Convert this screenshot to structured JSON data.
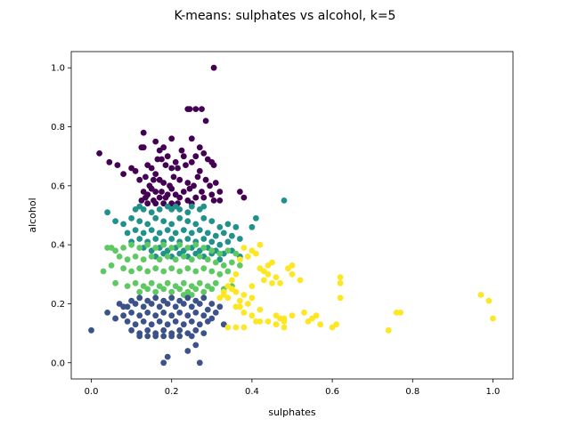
{
  "chart_data": {
    "type": "scatter",
    "title": "K-means: sulphates vs alcohol, k=5",
    "xlabel": "sulphates",
    "ylabel": "alcohol",
    "xlim": [
      -0.05,
      1.05
    ],
    "ylim": [
      -0.055,
      1.055
    ],
    "xticks": [
      0.0,
      0.2,
      0.4,
      0.6,
      0.8,
      1.0
    ],
    "yticks": [
      0.0,
      0.2,
      0.4,
      0.6,
      0.8,
      1.0
    ],
    "xtick_labels": [
      "0.0",
      "0.2",
      "0.4",
      "0.6",
      "0.8",
      "1.0"
    ],
    "ytick_labels": [
      "0.0",
      "0.2",
      "0.4",
      "0.6",
      "0.8",
      "1.0"
    ],
    "grid": false,
    "series": [
      {
        "color": "#440154",
        "x": [
          0.305,
          0.24,
          0.245,
          0.26,
          0.275,
          0.285,
          0.13,
          0.2,
          0.25,
          0.02,
          0.045,
          0.065,
          0.125,
          0.13,
          0.16,
          0.17,
          0.18,
          0.19,
          0.225,
          0.23,
          0.26,
          0.27,
          0.28,
          0.29,
          0.3,
          0.08,
          0.1,
          0.11,
          0.14,
          0.15,
          0.165,
          0.175,
          0.185,
          0.2,
          0.21,
          0.215,
          0.235,
          0.25,
          0.27,
          0.305,
          0.12,
          0.135,
          0.145,
          0.155,
          0.16,
          0.17,
          0.18,
          0.195,
          0.205,
          0.22,
          0.24,
          0.255,
          0.265,
          0.285,
          0.295,
          0.31,
          0.13,
          0.14,
          0.15,
          0.16,
          0.175,
          0.19,
          0.2,
          0.21,
          0.23,
          0.245,
          0.26,
          0.275,
          0.3,
          0.32,
          0.125,
          0.135,
          0.155,
          0.17,
          0.185,
          0.22,
          0.24,
          0.26,
          0.28,
          0.305,
          0.32,
          0.37,
          0.38,
          0.14,
          0.16,
          0.18,
          0.2,
          0.215,
          0.25
        ],
        "y": [
          1.0,
          0.86,
          0.86,
          0.86,
          0.86,
          0.82,
          0.78,
          0.76,
          0.76,
          0.71,
          0.68,
          0.67,
          0.73,
          0.73,
          0.75,
          0.72,
          0.73,
          0.7,
          0.72,
          0.7,
          0.7,
          0.73,
          0.71,
          0.69,
          0.68,
          0.64,
          0.66,
          0.65,
          0.67,
          0.66,
          0.69,
          0.69,
          0.67,
          0.66,
          0.68,
          0.66,
          0.67,
          0.68,
          0.65,
          0.67,
          0.62,
          0.63,
          0.6,
          0.62,
          0.64,
          0.62,
          0.61,
          0.6,
          0.63,
          0.62,
          0.61,
          0.6,
          0.63,
          0.62,
          0.6,
          0.61,
          0.58,
          0.57,
          0.59,
          0.58,
          0.58,
          0.57,
          0.59,
          0.57,
          0.58,
          0.59,
          0.56,
          0.58,
          0.57,
          0.58,
          0.55,
          0.56,
          0.55,
          0.56,
          0.56,
          0.56,
          0.55,
          0.56,
          0.56,
          0.55,
          0.55,
          0.58,
          0.56,
          0.54,
          0.54,
          0.54,
          0.54,
          0.54,
          0.54
        ]
      },
      {
        "color": "#21918c",
        "x": [
          0.48,
          0.41,
          0.4,
          0.04,
          0.11,
          0.12,
          0.13,
          0.15,
          0.17,
          0.19,
          0.2,
          0.21,
          0.22,
          0.24,
          0.25,
          0.27,
          0.28,
          0.06,
          0.08,
          0.1,
          0.12,
          0.14,
          0.16,
          0.18,
          0.2,
          0.22,
          0.24,
          0.26,
          0.28,
          0.3,
          0.32,
          0.34,
          0.36,
          0.09,
          0.11,
          0.13,
          0.15,
          0.17,
          0.19,
          0.21,
          0.23,
          0.25,
          0.27,
          0.29,
          0.31,
          0.33,
          0.35,
          0.37,
          0.1,
          0.12,
          0.14,
          0.16,
          0.18,
          0.2,
          0.22,
          0.24,
          0.26,
          0.28,
          0.3,
          0.32,
          0.34,
          0.13,
          0.15,
          0.17,
          0.19,
          0.21,
          0.23,
          0.25,
          0.27,
          0.29,
          0.31,
          0.33,
          0.35,
          0.37,
          0.16,
          0.18,
          0.2,
          0.22,
          0.24,
          0.26,
          0.28,
          0.3,
          0.32
        ],
        "y": [
          0.55,
          0.49,
          0.46,
          0.51,
          0.52,
          0.53,
          0.52,
          0.51,
          0.52,
          0.53,
          0.52,
          0.53,
          0.52,
          0.51,
          0.53,
          0.52,
          0.53,
          0.48,
          0.47,
          0.49,
          0.48,
          0.47,
          0.49,
          0.48,
          0.47,
          0.49,
          0.48,
          0.47,
          0.49,
          0.48,
          0.46,
          0.47,
          0.46,
          0.44,
          0.45,
          0.44,
          0.45,
          0.44,
          0.45,
          0.44,
          0.45,
          0.44,
          0.45,
          0.44,
          0.43,
          0.44,
          0.43,
          0.42,
          0.41,
          0.42,
          0.41,
          0.42,
          0.41,
          0.42,
          0.41,
          0.42,
          0.41,
          0.42,
          0.41,
          0.4,
          0.41,
          0.39,
          0.38,
          0.39,
          0.38,
          0.39,
          0.38,
          0.39,
          0.38,
          0.39,
          0.38,
          0.37,
          0.38,
          0.36,
          0.36,
          0.37,
          0.36,
          0.37,
          0.36,
          0.37,
          0.36,
          0.37,
          0.35
        ]
      },
      {
        "color": "#5ec962",
        "x": [
          0.03,
          0.04,
          0.05,
          0.06,
          0.08,
          0.1,
          0.12,
          0.14,
          0.16,
          0.18,
          0.2,
          0.22,
          0.24,
          0.26,
          0.28,
          0.3,
          0.32,
          0.34,
          0.36,
          0.07,
          0.09,
          0.11,
          0.13,
          0.15,
          0.17,
          0.19,
          0.21,
          0.23,
          0.25,
          0.27,
          0.29,
          0.31,
          0.33,
          0.35,
          0.37,
          0.05,
          0.08,
          0.1,
          0.12,
          0.14,
          0.16,
          0.18,
          0.2,
          0.22,
          0.24,
          0.26,
          0.28,
          0.3,
          0.32,
          0.34,
          0.06,
          0.09,
          0.11,
          0.13,
          0.15,
          0.17,
          0.19,
          0.21,
          0.23,
          0.25,
          0.27,
          0.29,
          0.31,
          0.33,
          0.35,
          0.12,
          0.14,
          0.16,
          0.18,
          0.2,
          0.22,
          0.24,
          0.26,
          0.28,
          0.3,
          0.25,
          0.23
        ],
        "y": [
          0.31,
          0.39,
          0.39,
          0.38,
          0.39,
          0.4,
          0.39,
          0.4,
          0.39,
          0.4,
          0.39,
          0.4,
          0.39,
          0.4,
          0.39,
          0.38,
          0.37,
          0.38,
          0.37,
          0.36,
          0.35,
          0.36,
          0.35,
          0.36,
          0.35,
          0.36,
          0.35,
          0.36,
          0.35,
          0.36,
          0.35,
          0.34,
          0.33,
          0.34,
          0.33,
          0.33,
          0.32,
          0.31,
          0.32,
          0.31,
          0.32,
          0.31,
          0.32,
          0.31,
          0.32,
          0.31,
          0.32,
          0.31,
          0.3,
          0.31,
          0.27,
          0.26,
          0.27,
          0.26,
          0.27,
          0.26,
          0.27,
          0.26,
          0.27,
          0.26,
          0.27,
          0.26,
          0.27,
          0.25,
          0.26,
          0.24,
          0.25,
          0.24,
          0.25,
          0.24,
          0.25,
          0.24,
          0.25,
          0.24,
          0.25,
          0.23,
          0.23
        ]
      },
      {
        "color": "#3b528b",
        "x": [
          0.0,
          0.04,
          0.06,
          0.08,
          0.1,
          0.12,
          0.14,
          0.16,
          0.18,
          0.2,
          0.22,
          0.24,
          0.26,
          0.28,
          0.3,
          0.32,
          0.07,
          0.09,
          0.11,
          0.13,
          0.15,
          0.17,
          0.19,
          0.21,
          0.23,
          0.25,
          0.27,
          0.29,
          0.31,
          0.06,
          0.08,
          0.1,
          0.12,
          0.14,
          0.16,
          0.18,
          0.2,
          0.22,
          0.24,
          0.26,
          0.28,
          0.3,
          0.09,
          0.11,
          0.13,
          0.15,
          0.17,
          0.19,
          0.21,
          0.23,
          0.25,
          0.27,
          0.29,
          0.1,
          0.12,
          0.14,
          0.16,
          0.18,
          0.2,
          0.22,
          0.24,
          0.26,
          0.28,
          0.12,
          0.14,
          0.16,
          0.18,
          0.2,
          0.22,
          0.25,
          0.26,
          0.24,
          0.19,
          0.18,
          0.27,
          0.33
        ],
        "y": [
          0.11,
          0.17,
          0.15,
          0.19,
          0.21,
          0.22,
          0.21,
          0.22,
          0.21,
          0.22,
          0.21,
          0.22,
          0.21,
          0.22,
          0.2,
          0.19,
          0.2,
          0.19,
          0.2,
          0.19,
          0.2,
          0.19,
          0.2,
          0.19,
          0.2,
          0.19,
          0.2,
          0.18,
          0.17,
          0.15,
          0.16,
          0.17,
          0.16,
          0.17,
          0.16,
          0.17,
          0.16,
          0.17,
          0.16,
          0.17,
          0.16,
          0.15,
          0.14,
          0.13,
          0.14,
          0.13,
          0.14,
          0.13,
          0.14,
          0.13,
          0.14,
          0.13,
          0.14,
          0.11,
          0.1,
          0.11,
          0.1,
          0.11,
          0.1,
          0.11,
          0.1,
          0.11,
          0.1,
          0.09,
          0.09,
          0.09,
          0.09,
          0.09,
          0.09,
          0.09,
          0.06,
          0.04,
          0.02,
          0.0,
          0.0,
          0.13
        ]
      },
      {
        "color": "#fde725",
        "x": [
          0.97,
          0.99,
          1.0,
          0.74,
          0.76,
          0.77,
          0.62,
          0.62,
          0.6,
          0.61,
          0.62,
          0.55,
          0.56,
          0.53,
          0.54,
          0.57,
          0.5,
          0.49,
          0.5,
          0.52,
          0.47,
          0.46,
          0.45,
          0.44,
          0.43,
          0.42,
          0.41,
          0.4,
          0.39,
          0.38,
          0.37,
          0.36,
          0.35,
          0.34,
          0.33,
          0.32,
          0.42,
          0.43,
          0.44,
          0.45,
          0.46,
          0.47,
          0.48,
          0.41,
          0.4,
          0.39,
          0.38,
          0.37,
          0.36,
          0.35,
          0.34,
          0.33,
          0.36,
          0.38,
          0.4,
          0.42,
          0.44,
          0.46,
          0.48,
          0.5,
          0.4,
          0.34,
          0.36,
          0.38,
          0.37,
          0.35,
          0.42,
          0.46,
          0.48
        ],
        "y": [
          0.23,
          0.21,
          0.15,
          0.11,
          0.17,
          0.17,
          0.29,
          0.27,
          0.12,
          0.13,
          0.22,
          0.15,
          0.16,
          0.17,
          0.14,
          0.13,
          0.33,
          0.32,
          0.3,
          0.28,
          0.27,
          0.29,
          0.27,
          0.3,
          0.28,
          0.4,
          0.37,
          0.38,
          0.36,
          0.39,
          0.35,
          0.3,
          0.28,
          0.26,
          0.24,
          0.22,
          0.32,
          0.31,
          0.33,
          0.34,
          0.16,
          0.15,
          0.14,
          0.14,
          0.22,
          0.2,
          0.23,
          0.21,
          0.24,
          0.25,
          0.22,
          0.23,
          0.19,
          0.17,
          0.16,
          0.18,
          0.14,
          0.13,
          0.12,
          0.16,
          0.26,
          0.12,
          0.12,
          0.12,
          0.19,
          0.25,
          0.14,
          0.13,
          0.15
        ]
      }
    ]
  }
}
